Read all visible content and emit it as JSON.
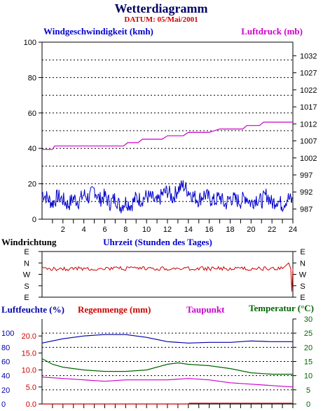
{
  "header": {
    "title": "Wetterdiagramm",
    "date": "DATUM: 05/Mai/2001"
  },
  "colors": {
    "wind": "#0000cc",
    "pressure": "#cc00cc",
    "winddir": "#cc0000",
    "humidity": "#0000aa",
    "rain": "#cc0000",
    "dew": "#cc00cc",
    "temp": "#006600",
    "title": "#000066"
  },
  "chart_data": [
    {
      "type": "line",
      "title": "",
      "labels": {
        "wind": "Windgeschwindigkeit (kmh)",
        "pressure": "Luftdruck (mb)"
      },
      "x_ticks": [
        "2",
        "4",
        "6",
        "8",
        "10",
        "12",
        "14",
        "16",
        "18",
        "20",
        "22",
        "24"
      ],
      "xlim": [
        0,
        24
      ],
      "y_left": {
        "ticks": [
          "0",
          "20",
          "40",
          "60",
          "80",
          "100"
        ],
        "lim": [
          0,
          100
        ]
      },
      "y_right": {
        "ticks": [
          "987",
          "992",
          "997",
          "1002",
          "1007",
          "1012",
          "1017",
          "1022",
          "1027",
          "1032"
        ],
        "lim": [
          984,
          1036
        ]
      },
      "series": [
        {
          "name": "Windgeschwindigkeit (kmh)",
          "axis": "left",
          "x": [
            0,
            0.5,
            1,
            1.5,
            2,
            2.5,
            3,
            3.5,
            4,
            4.5,
            5,
            5.5,
            6,
            6.5,
            7,
            7.5,
            8,
            8.5,
            9,
            9.5,
            10,
            10.5,
            11,
            11.5,
            12,
            12.5,
            13,
            13.5,
            14,
            14.5,
            15,
            15.5,
            16,
            16.5,
            17,
            17.5,
            18,
            18.5,
            19,
            19.5,
            20,
            20.5,
            21,
            21.5,
            22,
            22.5,
            23,
            23.5,
            24
          ],
          "values": [
            15,
            12,
            9,
            13,
            11,
            8,
            12,
            10,
            14,
            12,
            17,
            11,
            13,
            9,
            12,
            7,
            10,
            8,
            12,
            11,
            13,
            12,
            9,
            14,
            16,
            12,
            17,
            19,
            16,
            13,
            11,
            14,
            12,
            10,
            13,
            8,
            12,
            11,
            10,
            13,
            9,
            12,
            10,
            14,
            9,
            11,
            8,
            12,
            10
          ]
        },
        {
          "name": "Luftdruck (mb)",
          "axis": "right",
          "x": [
            0,
            1,
            1.2,
            4,
            7.8,
            8.2,
            9.2,
            9.6,
            11.5,
            12,
            13.5,
            14,
            16,
            17,
            19.2,
            19.6,
            20.8,
            21.2,
            24
          ],
          "values": [
            1004.5,
            1004.5,
            1005.5,
            1005.5,
            1005.5,
            1006.5,
            1006.5,
            1007.5,
            1007.5,
            1008.5,
            1008.5,
            1009.5,
            1009.5,
            1010.5,
            1010.5,
            1011.5,
            1011.5,
            1012.5,
            1012.5
          ]
        }
      ]
    },
    {
      "type": "line",
      "labels": {
        "direction": "Windrichtung",
        "time": "Uhrzeit (Stunden des Tages)"
      },
      "y_ticks": [
        "E",
        "N",
        "W",
        "S",
        "E"
      ],
      "xlim": [
        0,
        24
      ],
      "series": [
        {
          "name": "Windrichtung",
          "x": [
            0,
            1,
            2,
            3,
            4,
            5,
            6,
            7,
            8,
            9,
            10,
            11,
            12,
            13,
            14,
            15,
            16,
            17,
            18,
            19,
            20,
            21,
            22,
            23,
            23.6,
            23.8,
            23.9,
            24
          ],
          "values": [
            "NW",
            "NW",
            "NW",
            "NW",
            "NW",
            "NW",
            "NW",
            "NW",
            "NW",
            "NW",
            "NW",
            "NW",
            "NW",
            "NW",
            "NW",
            "NW",
            "NW",
            "NW",
            "NW",
            "NW",
            "NW",
            "NW",
            "NW",
            "NW",
            "N",
            "NW",
            "SE",
            "NW"
          ]
        }
      ]
    },
    {
      "type": "line",
      "labels": {
        "humidity": "Luftfeuchte (%)",
        "rain": "Regenmenge (mm)",
        "dew": "Taupunkt",
        "temp": "Temperatur (°C)"
      },
      "xlim": [
        0,
        24
      ],
      "y_humidity": {
        "ticks": [
          "0",
          "20",
          "40",
          "60",
          "80",
          "100"
        ],
        "lim": [
          0,
          120
        ]
      },
      "y_rain": {
        "ticks": [
          "0.0",
          "5.0",
          "10.0",
          "15.0",
          "20.0"
        ],
        "lim": [
          0,
          25
        ]
      },
      "y_temp": {
        "ticks": [
          "0",
          "5",
          "10",
          "15",
          "20",
          "25",
          "30"
        ],
        "lim": [
          0,
          30
        ]
      },
      "series": [
        {
          "name": "Luftfeuchte (%)",
          "axis": "humidity",
          "x": [
            0,
            2,
            4,
            6,
            8,
            10,
            12,
            14,
            16,
            18,
            20,
            22,
            24
          ],
          "values": [
            86,
            92,
            96,
            98,
            98,
            94,
            88,
            86,
            87,
            87,
            89,
            88,
            88
          ]
        },
        {
          "name": "Temperatur (°C)",
          "axis": "temp",
          "x": [
            0,
            1,
            2,
            3,
            4,
            6,
            8,
            10,
            12,
            13,
            14,
            16,
            18,
            20,
            22,
            24
          ],
          "values": [
            16,
            14,
            13,
            12.5,
            12,
            11.5,
            11.5,
            12,
            14,
            14.5,
            14,
            13.5,
            12.5,
            11,
            10.5,
            10.5
          ]
        },
        {
          "name": "Taupunkt",
          "axis": "temp",
          "x": [
            0,
            2,
            4,
            6,
            8,
            10,
            12,
            14,
            16,
            18,
            20,
            22,
            24
          ],
          "values": [
            9.5,
            9,
            8.5,
            8,
            8.5,
            8.5,
            8.5,
            9,
            8.5,
            7.5,
            7,
            6.5,
            6
          ]
        },
        {
          "name": "Regenmenge (mm)",
          "axis": "rain",
          "x": [
            0,
            14,
            14.1,
            20,
            24
          ],
          "values": [
            0,
            0,
            0.2,
            0.2,
            0.2
          ]
        }
      ]
    }
  ]
}
